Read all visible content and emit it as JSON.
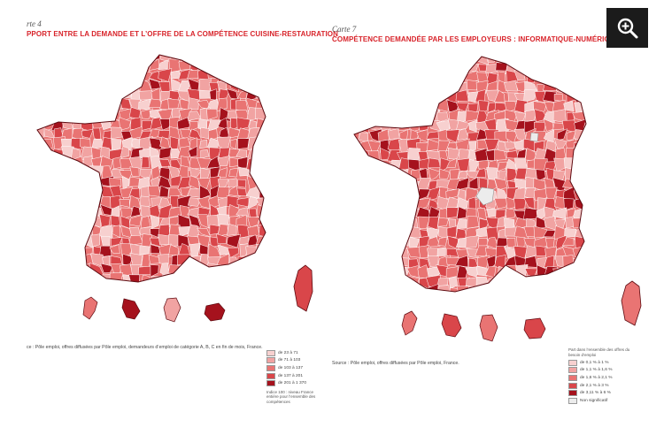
{
  "left_map": {
    "carte": "rte 4",
    "title": "PPORT ENTRE LA DEMANDE ET L’OFFRE DE LA COMPÉTENCE CUISINE-RESTAURATION",
    "source": "ce : Pôle emploi, offres diffusées par Pôle emploi, demandeurs d’emploi de catégorie A, B, C en fin de mois, France.",
    "legend": {
      "items": [
        {
          "label": "de 23 à 71",
          "color": "#f7d0cf"
        },
        {
          "label": "de 71 à 103",
          "color": "#f1a3a2"
        },
        {
          "label": "de 103 à 137",
          "color": "#e97473"
        },
        {
          "label": "de 137 à 201",
          "color": "#d9464a"
        },
        {
          "label": "de 201 à 1 370",
          "color": "#a5121d"
        }
      ],
      "note": "Indice 100 : niveau France entière pour l’ensemble des compétences"
    }
  },
  "right_map": {
    "carte": "Carte 7",
    "title": "COMPÉTENCE DEMANDÉE PAR LES EMPLOYEURS : INFORMATIQUE-NUMÉRIQUE",
    "source": "Source : Pôle emploi, offres diffusées par Pôle emploi, France.",
    "legend": {
      "heading": "Part dans l’ensemble des offres du besoin d’emploi",
      "items": [
        {
          "label": "de 0,1 % à 1 %",
          "color": "#f7d0cf"
        },
        {
          "label": "de 1,1 % à 1,6 %",
          "color": "#f1a3a2"
        },
        {
          "label": "de 1,6 % à 2,1 %",
          "color": "#e97473"
        },
        {
          "label": "de 2,1 % à 3 %",
          "color": "#d9464a"
        },
        {
          "label": "de 3,11 % à 6 %",
          "color": "#a5121d"
        },
        {
          "label": "Non significatif",
          "color": "#ececec"
        }
      ]
    }
  },
  "zoom_icon": "zoom-in-icon"
}
